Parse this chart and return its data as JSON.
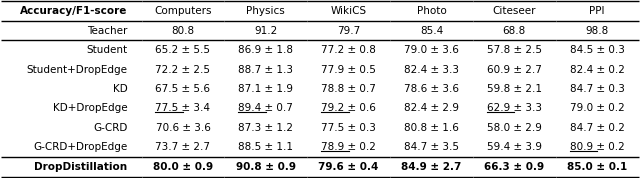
{
  "col_header": [
    "Accuracy/F1-score",
    "Computers",
    "Physics",
    "WikiCS",
    "Photo",
    "Citeseer",
    "PPI"
  ],
  "teacher_row": [
    "Teacher",
    "80.8",
    "91.2",
    "79.7",
    "85.4",
    "68.8",
    "98.8"
  ],
  "rows": [
    [
      "Student",
      "65.2 ± 5.5",
      "86.9 ± 1.8",
      "77.2 ± 0.8",
      "79.0 ± 3.6",
      "57.8 ± 2.5",
      "84.5 ± 0.3"
    ],
    [
      "Student+DropEdge",
      "72.2 ± 2.5",
      "88.7 ± 1.3",
      "77.9 ± 0.5",
      "82.4 ± 3.3",
      "60.9 ± 2.7",
      "82.4 ± 0.2"
    ],
    [
      "KD",
      "67.5 ± 5.6",
      "87.1 ± 1.9",
      "78.8 ± 0.7",
      "78.6 ± 3.6",
      "59.8 ± 2.1",
      "84.7 ± 0.3"
    ],
    [
      "KD+DropEdge",
      "77.5 ± 3.4",
      "89.4 ± 0.7",
      "79.2 ± 0.6",
      "82.4 ± 2.9",
      "62.9 ± 3.3",
      "79.0 ± 0.2"
    ],
    [
      "G-CRD",
      "70.6 ± 3.6",
      "87.3 ± 1.2",
      "77.5 ± 0.3",
      "80.8 ± 1.6",
      "58.0 ± 2.9",
      "84.7 ± 0.2"
    ],
    [
      "G-CRD+DropEdge",
      "73.7 ± 2.7",
      "88.5 ± 1.1",
      "78.9 ± 0.2",
      "84.7 ± 3.5",
      "59.4 ± 3.9",
      "80.9 ± 0.2"
    ]
  ],
  "drop_row": [
    "DropDistillation",
    "80.0 ± 0.9",
    "90.8 ± 0.9",
    "79.6 ± 0.4",
    "84.9 ± 2.7",
    "66.3 ± 0.9",
    "85.0 ± 0.1"
  ],
  "underline_cells": [
    [
      3,
      1
    ],
    [
      3,
      2
    ],
    [
      3,
      3
    ],
    [
      3,
      5
    ],
    [
      5,
      3
    ],
    [
      5,
      6
    ]
  ],
  "bold_row_index": 7,
  "background_color": "#ffffff",
  "text_color": "#000000",
  "header_bold": true
}
